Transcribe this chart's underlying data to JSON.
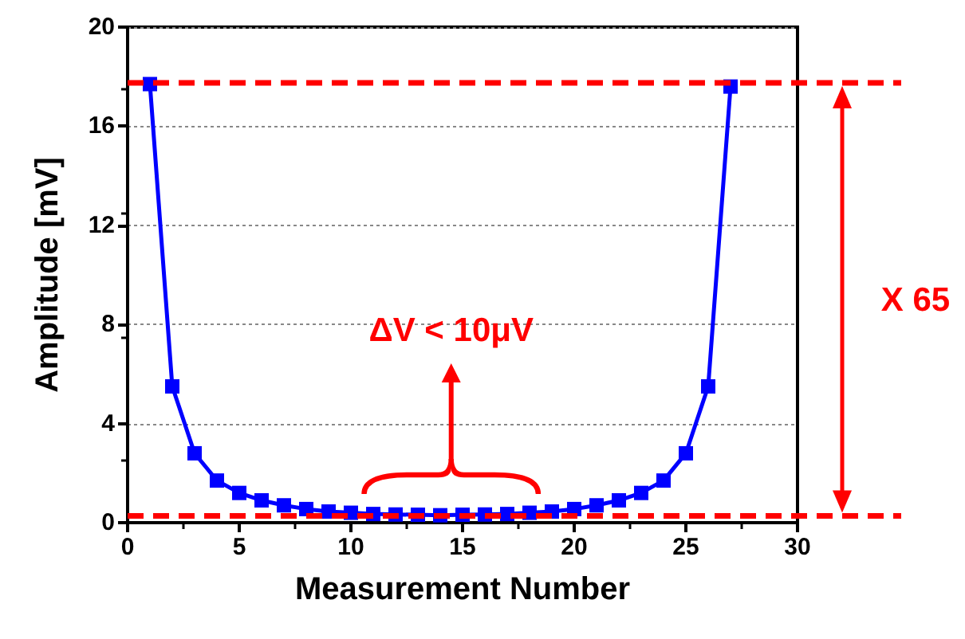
{
  "chart_data": {
    "type": "line",
    "xlabel": "Measurement Number",
    "ylabel": "Amplitude [mV]",
    "x": [
      1,
      2,
      3,
      4,
      5,
      6,
      7,
      8,
      9,
      10,
      11,
      12,
      13,
      14,
      15,
      16,
      17,
      18,
      19,
      20,
      21,
      22,
      23,
      24,
      25,
      26,
      27
    ],
    "series": [
      {
        "color": "#0000ff",
        "values": [
          17.7,
          5.5,
          2.8,
          1.7,
          1.2,
          0.9,
          0.7,
          0.55,
          0.45,
          0.4,
          0.35,
          0.33,
          0.32,
          0.3,
          0.32,
          0.33,
          0.35,
          0.4,
          0.45,
          0.55,
          0.7,
          0.9,
          1.2,
          1.7,
          2.8,
          5.5,
          17.6
        ]
      }
    ],
    "xlim": [
      0,
      30
    ],
    "xticks": [
      0,
      5,
      10,
      15,
      20,
      25,
      30
    ],
    "ylim": [
      0,
      20
    ],
    "yticks": [
      0,
      4,
      8,
      12,
      16,
      20
    ],
    "grid": "y",
    "marker": "square",
    "line_style": "solid",
    "ref_lines": [
      {
        "axis": "y",
        "value": 17.75,
        "color": "#ff0000",
        "line_style": "dashed"
      },
      {
        "axis": "y",
        "value": 0.27,
        "color": "#ff0000",
        "line_style": "dashed"
      }
    ],
    "annotations": [
      "ΔV < 10μV",
      "X 65"
    ]
  }
}
